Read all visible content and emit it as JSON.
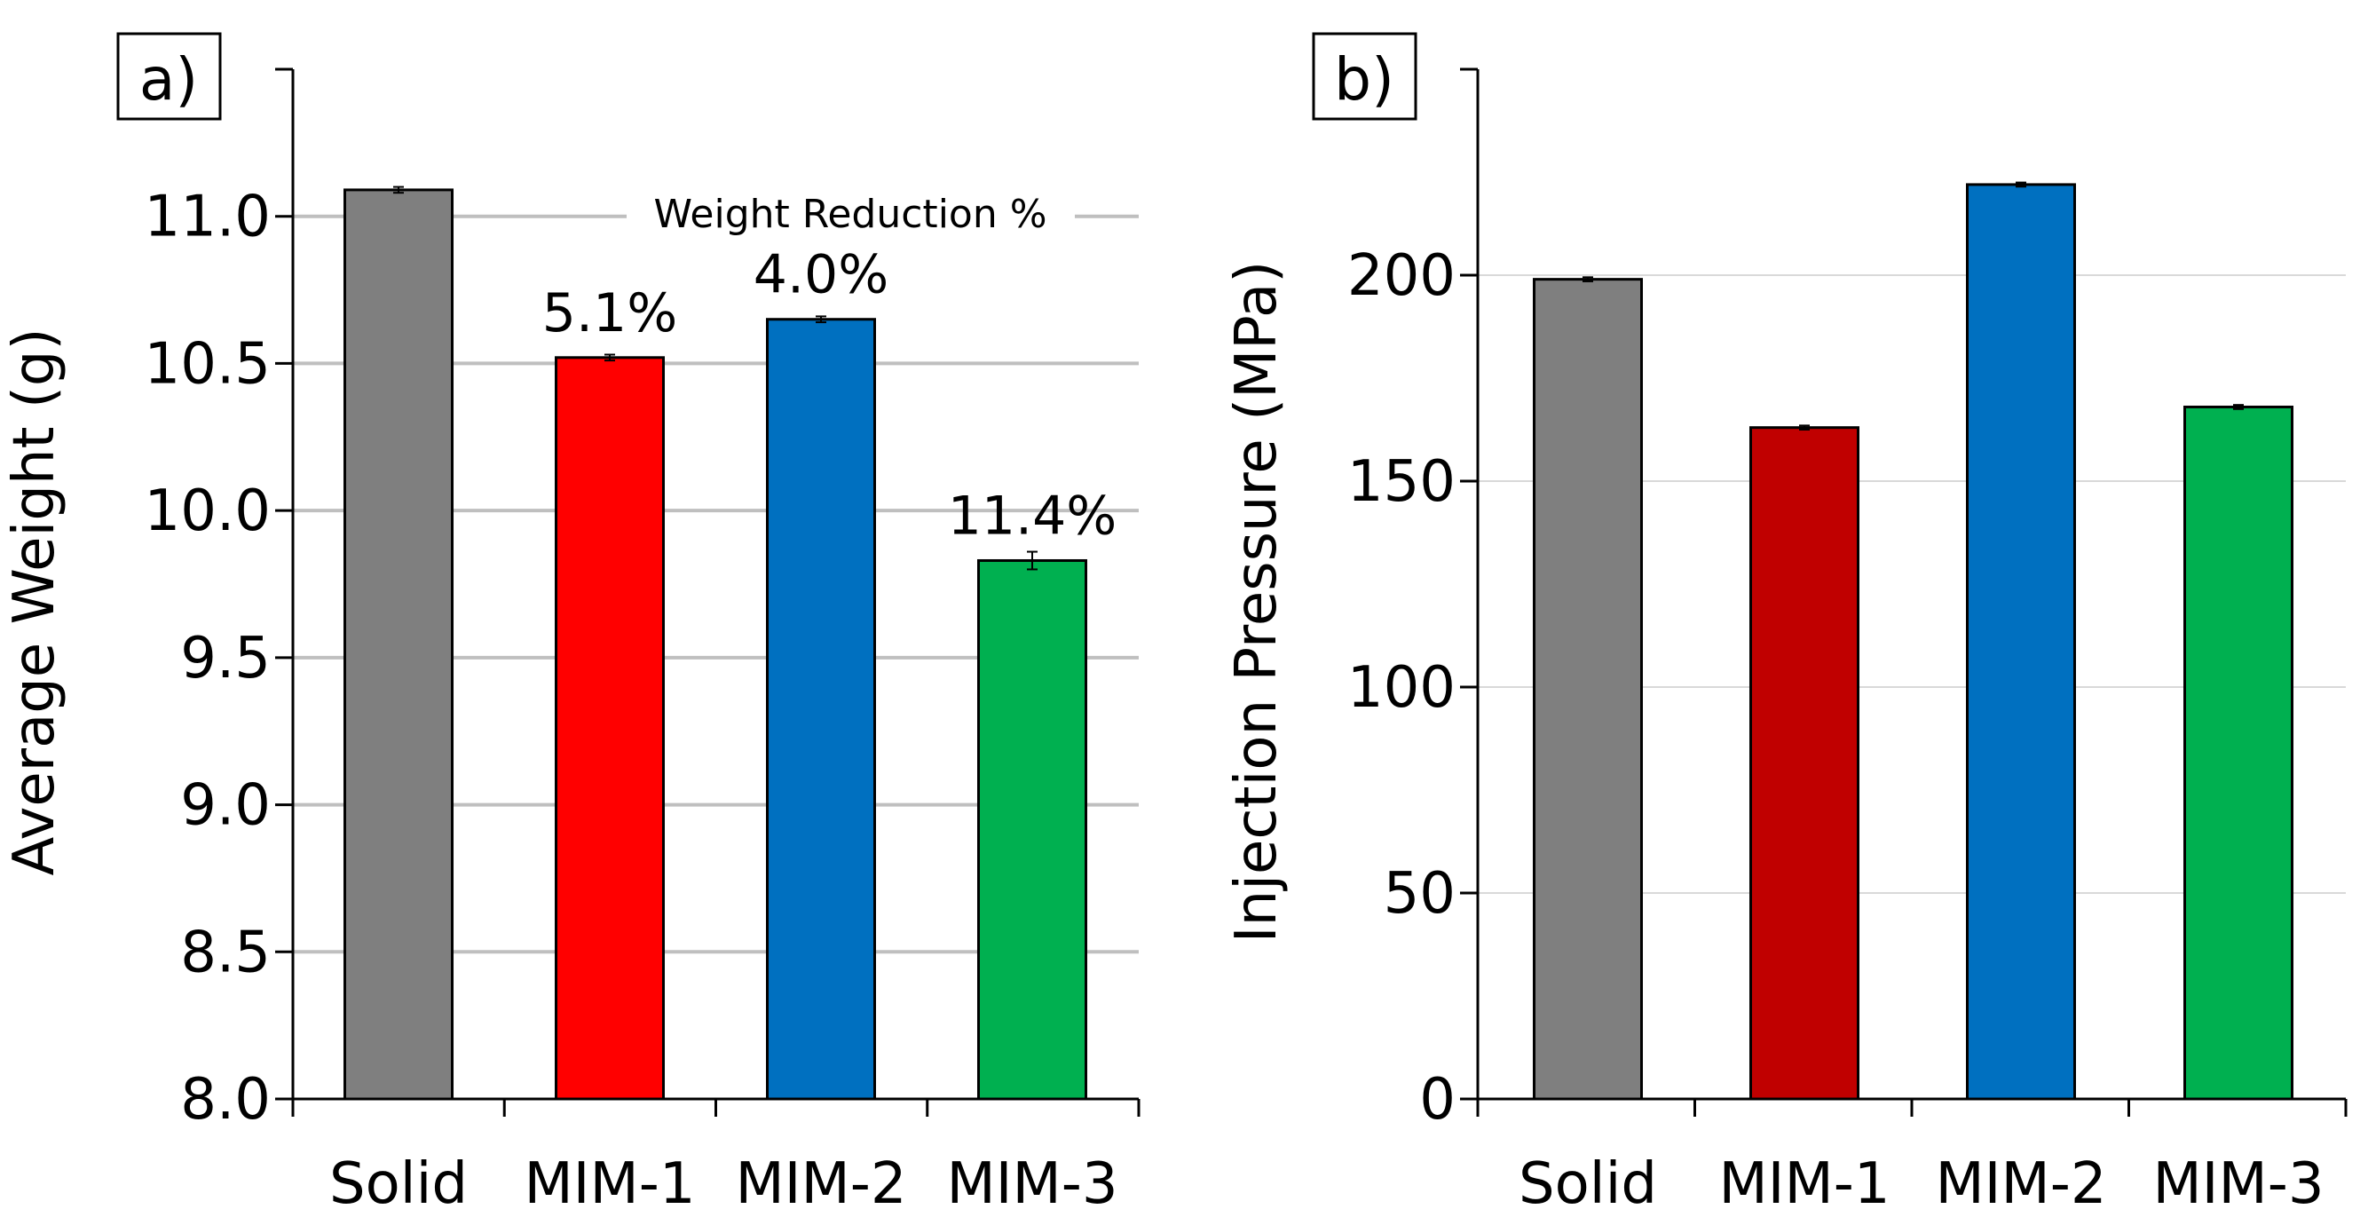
{
  "chart_data": [
    {
      "type": "bar",
      "panel_label": "a)",
      "categories": [
        "Solid",
        "MIM-1",
        "MIM-2",
        "MIM-3"
      ],
      "values": [
        11.09,
        10.52,
        10.65,
        9.83
      ],
      "error_bars": [
        0.01,
        0.01,
        0.01,
        0.03
      ],
      "colors": [
        "#7f7f7f",
        "#ff0000",
        "#0070c0",
        "#00b050"
      ],
      "ylabel": "Average Weight (g)",
      "ylim": [
        8.0,
        11.5
      ],
      "yticks": [
        8.0,
        8.5,
        9.0,
        9.5,
        10.0,
        10.5,
        11.0
      ],
      "ytick_labels": [
        "8.0",
        "8.5",
        "9.0",
        "9.5",
        "10.0",
        "10.5",
        "11.0"
      ],
      "grid": true,
      "annotation_title": "Weight Reduction %",
      "data_labels": [
        "",
        "5.1%",
        "4.0%",
        "11.4%"
      ]
    },
    {
      "type": "bar",
      "panel_label": "b)",
      "categories": [
        "Solid",
        "MIM-1",
        "MIM-2",
        "MIM-3"
      ],
      "values": [
        199,
        163,
        222,
        168
      ],
      "error_bars": [
        0.5,
        0.5,
        0.5,
        0.5
      ],
      "colors": [
        "#7f7f7f",
        "#c00000",
        "#0070c0",
        "#00b050"
      ],
      "ylabel": "Injection Pressure (MPa)",
      "ylim": [
        0,
        250
      ],
      "yticks": [
        0,
        50,
        100,
        150,
        200
      ],
      "ytick_labels": [
        "0",
        "50",
        "100",
        "150",
        "200"
      ],
      "grid": true
    }
  ]
}
